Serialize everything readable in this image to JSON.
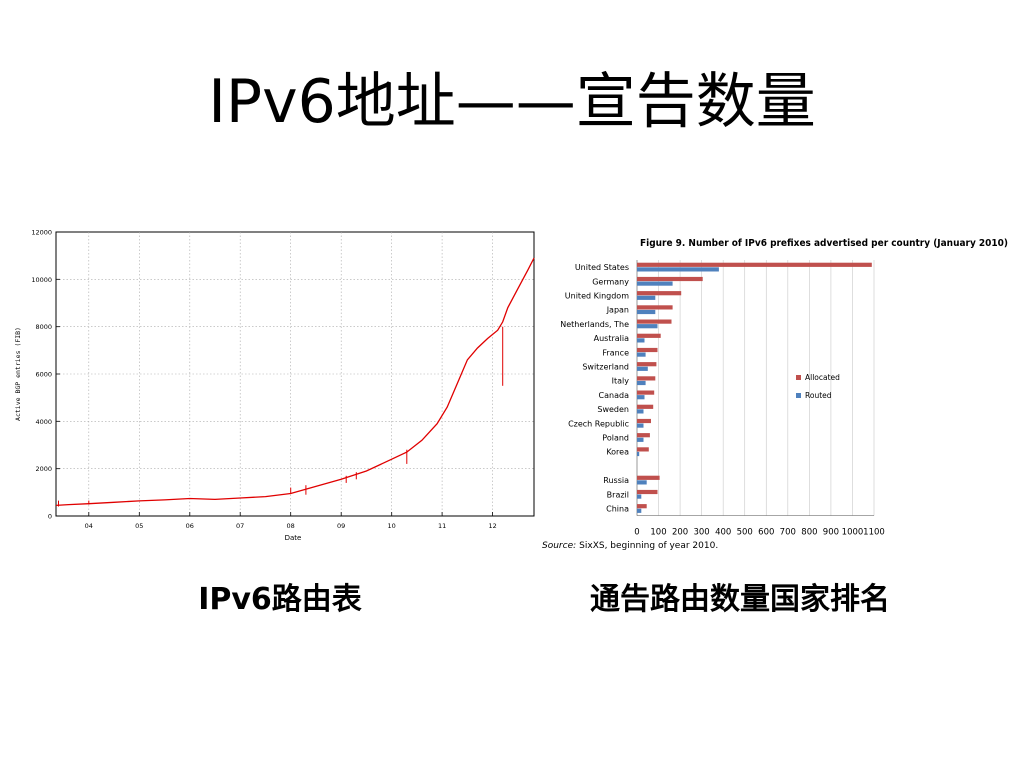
{
  "slide": {
    "title": "IPv6地址——宣告数量",
    "caption_left": "IPv6路由表",
    "caption_right": "通告路由数量国家排名"
  },
  "chart_data": [
    {
      "type": "line",
      "title": "",
      "xlabel": "Date",
      "ylabel": "Active BGP entries (FIB)",
      "xlim": [
        3.35,
        12.82
      ],
      "ylim": [
        0,
        12000
      ],
      "x_ticks": [
        4,
        5,
        6,
        7,
        8,
        9,
        10,
        11,
        12
      ],
      "x_tick_labels": [
        "04",
        "05",
        "06",
        "07",
        "08",
        "09",
        "10",
        "11",
        "12"
      ],
      "y_ticks": [
        0,
        2000,
        4000,
        6000,
        8000,
        10000,
        12000
      ],
      "y_tick_labels": [
        "0",
        "2000",
        "4000",
        "6000",
        "8000",
        "10000",
        "12000"
      ],
      "grid": true,
      "series": [
        {
          "color": "#e00000",
          "x": [
            3.35,
            3.6,
            4.0,
            4.5,
            5.0,
            5.5,
            6.0,
            6.5,
            7.0,
            7.5,
            8.0,
            8.5,
            9.0,
            9.5,
            10.0,
            10.3,
            10.6,
            10.9,
            11.1,
            11.3,
            11.5,
            11.7,
            11.9,
            12.1,
            12.2,
            12.3,
            12.5,
            12.7,
            12.82
          ],
          "y": [
            450,
            480,
            520,
            580,
            640,
            680,
            740,
            700,
            760,
            820,
            950,
            1250,
            1550,
            1900,
            2400,
            2700,
            3200,
            3900,
            4600,
            5600,
            6600,
            7100,
            7500,
            7850,
            8200,
            8800,
            9600,
            10400,
            10900
          ]
        }
      ],
      "spikes": [
        {
          "x": 12.2,
          "low": 5500,
          "high": 8000
        },
        {
          "x": 10.3,
          "low": 2200,
          "high": 2800
        },
        {
          "x": 8.3,
          "low": 900,
          "high": 1300
        },
        {
          "x": 8.0,
          "low": 950,
          "high": 1200
        },
        {
          "x": 9.1,
          "low": 1400,
          "high": 1700
        },
        {
          "x": 9.3,
          "low": 1550,
          "high": 1850
        },
        {
          "x": 3.4,
          "low": 400,
          "high": 650
        },
        {
          "x": 4.0,
          "low": 480,
          "high": 650
        }
      ]
    },
    {
      "type": "bar",
      "orientation": "horizontal",
      "title": "Figure 9.  Number of IPv6 prefixes advertised per country (January 2010)",
      "source_label": "Source:",
      "source_text": "SixXS, beginning of year 2010.",
      "xlim": [
        0,
        1100
      ],
      "x_ticks": [
        0,
        100,
        200,
        300,
        400,
        500,
        600,
        700,
        800,
        900,
        1000,
        1100
      ],
      "x_tick_labels": [
        "0",
        "100",
        "200",
        "300",
        "400",
        "500",
        "600",
        "700",
        "800",
        "900",
        "1000",
        "1100"
      ],
      "grid": true,
      "legend_position": "right",
      "categories": [
        "United States",
        "Germany",
        "United Kingdom",
        "Japan",
        "Netherlands, The",
        "Australia",
        "France",
        "Switzerland",
        "Italy",
        "Canada",
        "Sweden",
        "Czech Republic",
        "Poland",
        "Korea",
        "",
        "Russia",
        "Brazil",
        "China"
      ],
      "series": [
        {
          "name": "Allocated",
          "color": "#c0504d",
          "values": [
            1090,
            305,
            205,
            165,
            160,
            110,
            95,
            90,
            85,
            80,
            75,
            65,
            60,
            55,
            null,
            105,
            95,
            45
          ]
        },
        {
          "name": "Routed",
          "color": "#4f81bd",
          "values": [
            380,
            165,
            85,
            85,
            95,
            35,
            40,
            50,
            40,
            35,
            30,
            30,
            30,
            10,
            null,
            45,
            20,
            20
          ]
        }
      ]
    }
  ]
}
